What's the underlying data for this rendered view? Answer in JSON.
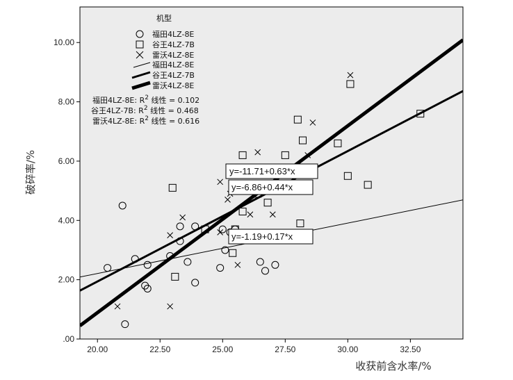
{
  "chart_data": {
    "type": "scatter",
    "xlabel": "收获前含水率/%",
    "ylabel": "破碎率/%",
    "xlim": [
      19.3,
      34.6
    ],
    "ylim": [
      0.0,
      11.2
    ],
    "x_ticks": [
      {
        "value": 20,
        "label": "20.00"
      },
      {
        "value": 22.5,
        "label": "22.50"
      },
      {
        "value": 25,
        "label": "25.00"
      },
      {
        "value": 27.5,
        "label": "27.50"
      },
      {
        "value": 30,
        "label": "30.00"
      },
      {
        "value": 32.5,
        "label": "32.50"
      }
    ],
    "y_ticks": [
      {
        "value": 0,
        "label": ".00"
      },
      {
        "value": 2,
        "label": "2.00"
      },
      {
        "value": 4,
        "label": "4.00"
      },
      {
        "value": 6,
        "label": "6.00"
      },
      {
        "value": 8,
        "label": "8.00"
      },
      {
        "value": 10,
        "label": "10.00"
      }
    ],
    "legend": {
      "title": "机型",
      "placement": "top-left",
      "point_entries": [
        {
          "marker": "circle",
          "label": "福田4LZ-8E"
        },
        {
          "marker": "square",
          "label": "谷王4LZ-7B"
        },
        {
          "marker": "x",
          "label": "雷沃4LZ-8E"
        }
      ],
      "line_entries": [
        {
          "weight": "thin",
          "label": "福田4LZ-8E"
        },
        {
          "weight": "medium",
          "label": "谷王4LZ-7B"
        },
        {
          "weight": "thick",
          "label": "雷沃4LZ-8E"
        }
      ],
      "r2_lines": [
        {
          "prefix": "福田4LZ-8E: R",
          "suffix": " 线性 = 0.102"
        },
        {
          "prefix": "谷王4LZ-7B: R",
          "suffix": " 线性 = 0.468"
        },
        {
          "prefix": "雷沃4LZ-8E: R",
          "suffix": " 线性 = 0.616"
        }
      ],
      "r2_superscript": "2"
    },
    "series": [
      {
        "name": "福田4LZ-8E",
        "marker": "circle",
        "fit": {
          "intercept": -1.19,
          "slope": 0.17,
          "label": "y=-1.19+0.17*x",
          "weight": "thin"
        },
        "points": [
          [
            20.4,
            2.4
          ],
          [
            21.0,
            4.5
          ],
          [
            21.1,
            0.5
          ],
          [
            21.5,
            2.7
          ],
          [
            22.0,
            2.5
          ],
          [
            21.9,
            1.8
          ],
          [
            22.0,
            1.7
          ],
          [
            22.9,
            2.8
          ],
          [
            23.3,
            3.8
          ],
          [
            23.3,
            3.3
          ],
          [
            23.6,
            2.6
          ],
          [
            23.9,
            3.8
          ],
          [
            23.9,
            1.9
          ],
          [
            24.9,
            2.4
          ],
          [
            25.0,
            3.7
          ],
          [
            25.1,
            3.0
          ],
          [
            25.5,
            3.7
          ],
          [
            26.5,
            2.6
          ],
          [
            26.7,
            2.3
          ],
          [
            27.1,
            2.5
          ],
          [
            25.3,
            3.6
          ]
        ]
      },
      {
        "name": "谷王4LZ-7B",
        "marker": "square",
        "fit": {
          "intercept": -6.86,
          "slope": 0.44,
          "label": "y=-6.86+0.44*x",
          "weight": "medium"
        },
        "points": [
          [
            23.0,
            5.1
          ],
          [
            23.1,
            2.1
          ],
          [
            24.3,
            3.7
          ],
          [
            25.4,
            2.9
          ],
          [
            25.8,
            4.3
          ],
          [
            25.8,
            6.2
          ],
          [
            26.4,
            4.9
          ],
          [
            26.8,
            4.6
          ],
          [
            27.5,
            6.2
          ],
          [
            28.0,
            7.4
          ],
          [
            28.1,
            3.9
          ],
          [
            28.2,
            6.7
          ],
          [
            29.6,
            6.6
          ],
          [
            30.0,
            5.5
          ],
          [
            30.1,
            8.6
          ],
          [
            30.8,
            5.2
          ],
          [
            32.9,
            7.6
          ],
          [
            25.5,
            3.7
          ]
        ]
      },
      {
        "name": "雷沃4LZ-8E",
        "marker": "x",
        "fit": {
          "intercept": -11.71,
          "slope": 0.63,
          "label": "y=-11.71+0.63*x",
          "weight": "thick"
        },
        "points": [
          [
            20.8,
            1.1
          ],
          [
            22.9,
            1.1
          ],
          [
            22.9,
            3.5
          ],
          [
            23.4,
            4.1
          ],
          [
            24.9,
            5.3
          ],
          [
            24.9,
            3.6
          ],
          [
            25.2,
            4.7
          ],
          [
            25.6,
            2.5
          ],
          [
            26.1,
            4.2
          ],
          [
            26.4,
            6.3
          ],
          [
            27.0,
            4.2
          ],
          [
            28.4,
            6.2
          ],
          [
            28.6,
            7.3
          ],
          [
            30.1,
            8.9
          ],
          [
            25.3,
            4.9
          ]
        ]
      }
    ]
  }
}
